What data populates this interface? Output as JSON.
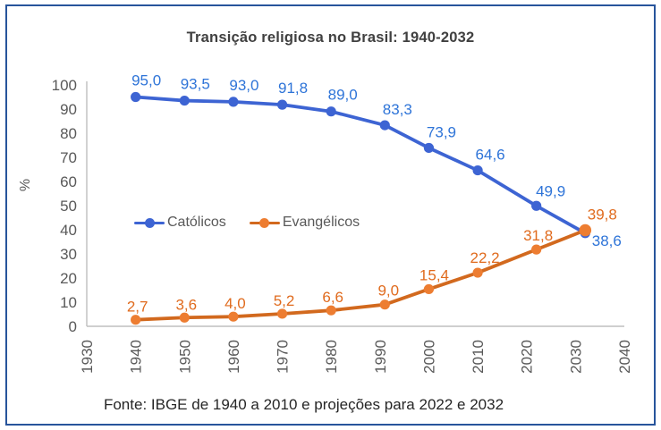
{
  "frame": {
    "border_color": "#27549B",
    "background": "#FFFFFF"
  },
  "chart_data": {
    "type": "line",
    "title": "Transição religiosa no Brasil: 1940-2032",
    "source_note": "Fonte: IBGE de 1940 a 2010 e projeções para 2022 e 2032",
    "xlabel": "",
    "ylabel": "%",
    "xlim": [
      1930,
      2040
    ],
    "ylim": [
      0,
      100
    ],
    "x_ticks": [
      1930,
      1940,
      1950,
      1960,
      1970,
      1980,
      1990,
      2000,
      2010,
      2020,
      2030,
      2040
    ],
    "y_ticks": [
      0,
      10,
      20,
      30,
      40,
      50,
      60,
      70,
      80,
      90,
      100
    ],
    "grid": false,
    "legend_position": "inside-center-left",
    "axis_color": "#BFBFBF",
    "tick_label_color": "#595959",
    "x": [
      1940,
      1950,
      1960,
      1970,
      1980,
      1991,
      2000,
      2010,
      2022,
      2032
    ],
    "series": [
      {
        "name": "Católicos",
        "color": "#3D64D3",
        "marker_color": "#3D64D3",
        "label_color": "#2E74D8",
        "values": [
          95.0,
          93.5,
          93.0,
          91.8,
          89.0,
          83.3,
          73.9,
          64.6,
          49.9,
          38.6
        ],
        "labels": [
          "95,0",
          "93,5",
          "93,0",
          "91,8",
          "89,0",
          "83,3",
          "73,9",
          "64,6",
          "49,9",
          "38,6"
        ],
        "label_offsets": [
          [
            12,
            -13
          ],
          [
            12,
            -13
          ],
          [
            12,
            -13
          ],
          [
            12,
            -13
          ],
          [
            13,
            -13
          ],
          [
            14,
            -12
          ],
          [
            14,
            -12
          ],
          [
            14,
            -12
          ],
          [
            16,
            -11
          ],
          [
            24,
            14
          ]
        ]
      },
      {
        "name": "Evangélicos",
        "color": "#D2691E",
        "marker_color": "#ED7D31",
        "label_color": "#E06B1E",
        "values": [
          2.7,
          3.6,
          4.0,
          5.2,
          6.6,
          9.0,
          15.4,
          22.2,
          31.8,
          39.8
        ],
        "labels": [
          "2,7",
          "3,6",
          "4,0",
          "5,2",
          "6,6",
          "9,0",
          "15,4",
          "22,2",
          "31,8",
          "39,8"
        ],
        "label_offsets": [
          [
            2,
            -9
          ],
          [
            2,
            -9
          ],
          [
            2,
            -9
          ],
          [
            2,
            -9
          ],
          [
            2,
            -9
          ],
          [
            4,
            -10
          ],
          [
            6,
            -10
          ],
          [
            8,
            -11
          ],
          [
            2,
            -10
          ],
          [
            19,
            -12
          ]
        ]
      }
    ]
  }
}
